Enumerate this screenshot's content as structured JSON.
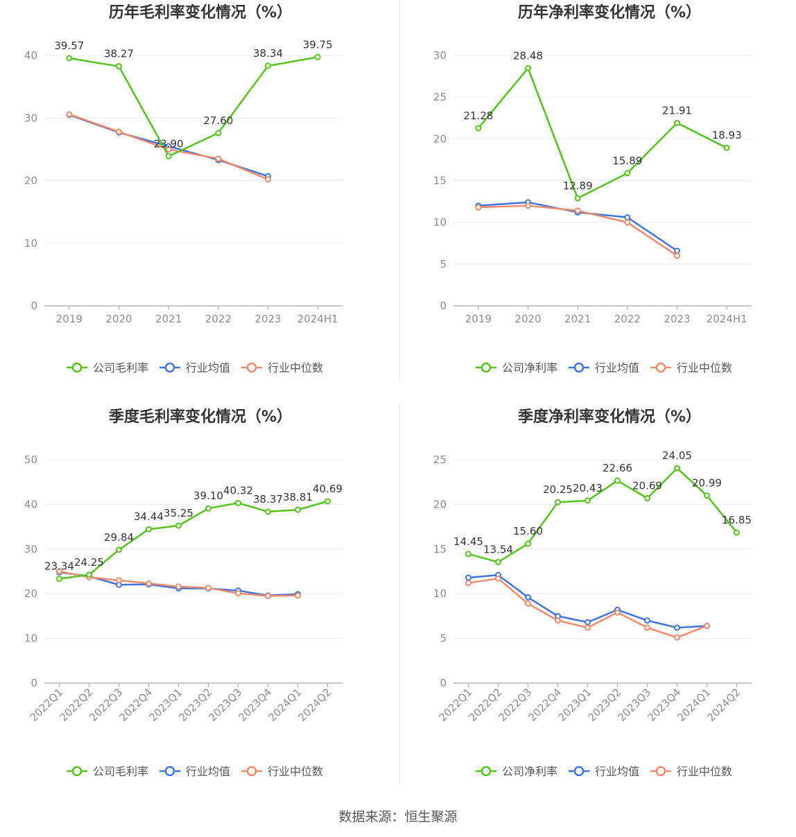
{
  "colors": {
    "company": "#52c41a",
    "avg": "#3f74e0",
    "median": "#f08a6b",
    "grid": "#e8ecf3",
    "axis": "#a6a6a6",
    "tick_text": "#8c8c8c",
    "title_text": "#333333",
    "label_text": "#333333"
  },
  "source": "数据来源：恒生聚源",
  "chart_data": [
    {
      "type": "line",
      "title": "历年毛利率变化情况（%）",
      "categories": [
        "2019",
        "2020",
        "2021",
        "2022",
        "2023",
        "2024H1"
      ],
      "ylim": [
        0,
        40
      ],
      "yticks": [
        0,
        10,
        20,
        30,
        40
      ],
      "rotate_x": false,
      "legend": "bottom-center",
      "series": [
        {
          "name": "公司毛利率",
          "key": "company",
          "values": [
            39.57,
            38.27,
            23.9,
            27.6,
            38.34,
            39.75
          ],
          "labels": [
            "39.57",
            "38.27",
            "23.90",
            "27.60",
            "38.34",
            "39.75"
          ]
        },
        {
          "name": "行业均值",
          "key": "avg",
          "values": [
            30.5,
            27.7,
            25.5,
            23.3,
            20.7,
            null
          ]
        },
        {
          "name": "行业中位数",
          "key": "median",
          "values": [
            30.6,
            27.8,
            25.0,
            23.5,
            20.2,
            null
          ]
        }
      ]
    },
    {
      "type": "line",
      "title": "历年净利率变化情况（%）",
      "categories": [
        "2019",
        "2020",
        "2021",
        "2022",
        "2023",
        "2024H1"
      ],
      "ylim": [
        0,
        30
      ],
      "yticks": [
        0,
        5,
        10,
        15,
        20,
        25,
        30
      ],
      "rotate_x": false,
      "legend": "bottom-center",
      "series": [
        {
          "name": "公司净利率",
          "key": "company",
          "values": [
            21.28,
            28.48,
            12.89,
            15.89,
            21.91,
            18.93
          ],
          "labels": [
            "21.28",
            "28.48",
            "12.89",
            "15.89",
            "21.91",
            "18.93"
          ]
        },
        {
          "name": "行业均值",
          "key": "avg",
          "values": [
            12.0,
            12.4,
            11.2,
            10.6,
            6.6,
            null
          ]
        },
        {
          "name": "行业中位数",
          "key": "median",
          "values": [
            11.8,
            12.0,
            11.4,
            10.0,
            6.0,
            null
          ]
        }
      ]
    },
    {
      "type": "line",
      "title": "季度毛利率变化情况（%）",
      "categories": [
        "2022Q1",
        "2022Q2",
        "2022Q3",
        "2022Q4",
        "2023Q1",
        "2023Q2",
        "2023Q3",
        "2023Q4",
        "2024Q1",
        "2024Q2"
      ],
      "ylim": [
        0,
        50
      ],
      "yticks": [
        0,
        10,
        20,
        30,
        40,
        50
      ],
      "rotate_x": true,
      "legend": "bottom-center",
      "series": [
        {
          "name": "公司毛利率",
          "key": "company",
          "values": [
            23.34,
            24.25,
            29.84,
            34.44,
            35.25,
            39.1,
            40.32,
            38.37,
            38.81,
            40.69
          ],
          "labels": [
            "23.34",
            "24.25",
            "29.84",
            "34.44",
            "35.25",
            "39.10",
            "40.32",
            "38.37",
            "38.81",
            "40.69"
          ]
        },
        {
          "name": "行业均值",
          "key": "avg",
          "values": [
            24.8,
            23.9,
            22.0,
            22.1,
            21.2,
            21.2,
            20.7,
            19.6,
            19.9,
            null
          ]
        },
        {
          "name": "行业中位数",
          "key": "median",
          "values": [
            25.0,
            23.7,
            23.0,
            22.3,
            21.6,
            21.3,
            20.1,
            19.5,
            19.6,
            null
          ]
        }
      ]
    },
    {
      "type": "line",
      "title": "季度净利率变化情况（%）",
      "categories": [
        "2022Q1",
        "2022Q2",
        "2022Q3",
        "2022Q4",
        "2023Q1",
        "2023Q2",
        "2023Q3",
        "2023Q4",
        "2024Q1",
        "2024Q2"
      ],
      "ylim": [
        0,
        25
      ],
      "yticks": [
        0,
        5,
        10,
        15,
        20,
        25
      ],
      "rotate_x": true,
      "legend": "bottom-center",
      "series": [
        {
          "name": "公司净利率",
          "key": "company",
          "values": [
            14.45,
            13.54,
            15.6,
            20.25,
            20.43,
            22.66,
            20.69,
            24.05,
            20.99,
            16.85
          ],
          "labels": [
            "14.45",
            "13.54",
            "15.60",
            "20.25",
            "20.43",
            "22.66",
            "20.69",
            "24.05",
            "20.99",
            "16.85"
          ]
        },
        {
          "name": "行业均值",
          "key": "avg",
          "values": [
            11.8,
            12.1,
            9.6,
            7.5,
            6.8,
            8.2,
            7.0,
            6.2,
            6.4,
            null
          ]
        },
        {
          "name": "行业中位数",
          "key": "median",
          "values": [
            11.2,
            11.7,
            8.9,
            7.0,
            6.2,
            7.9,
            6.2,
            5.1,
            6.4,
            null
          ]
        }
      ]
    }
  ]
}
